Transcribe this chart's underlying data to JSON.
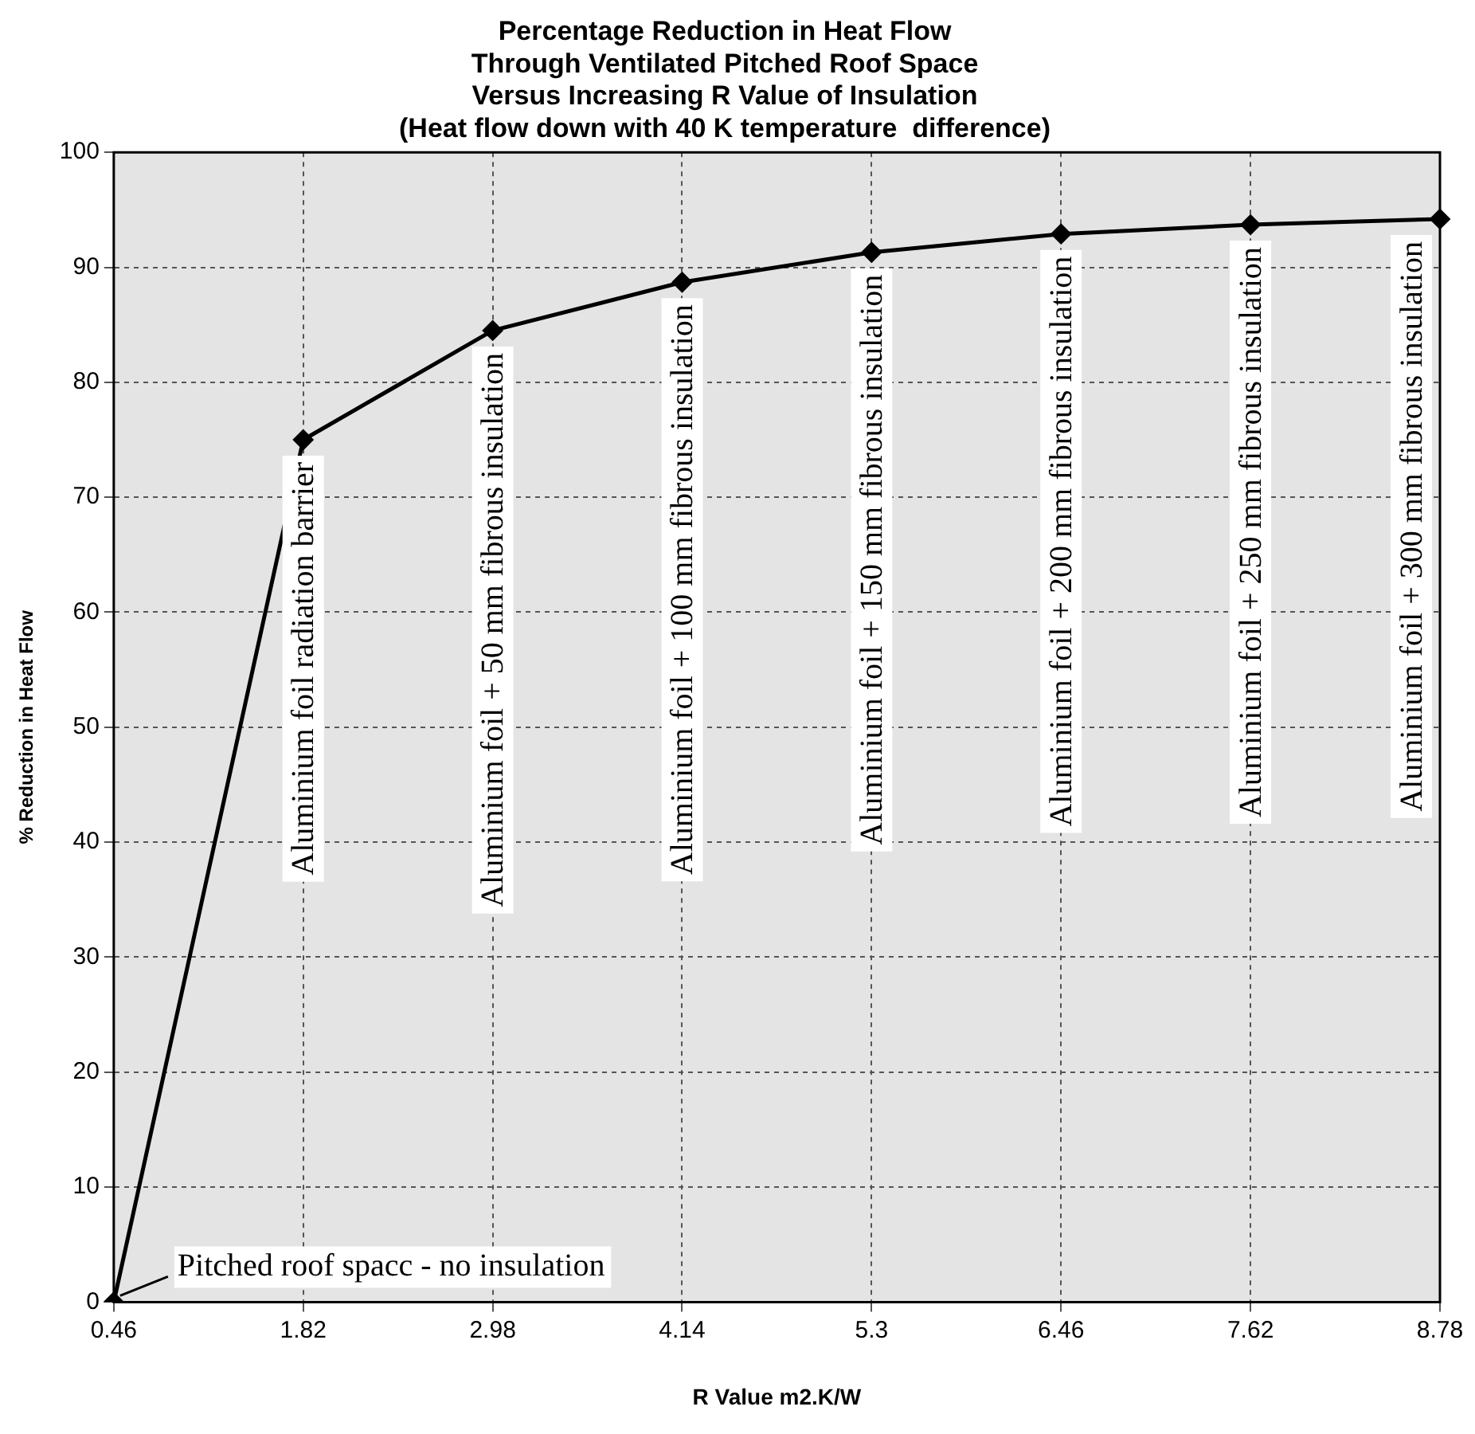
{
  "chart_data": {
    "type": "line",
    "title": "Percentage Reduction in Heat Flow\nThrough Ventilated Pitched Roof Space\nVersus Increasing R Value of Insulation\n(Heat flow down with 40 K temperature  difference)",
    "xlabel": "R Value m2.K/W",
    "ylabel": "% Reduction in Heat Flow",
    "categories": [
      "0.46",
      "1.82",
      "2.98",
      "4.14",
      "5.3",
      "6.46",
      "7.62",
      "8.78"
    ],
    "series": [
      {
        "color": "#000000",
        "values": [
          0,
          75,
          84.5,
          88.7,
          91.3,
          92.9,
          93.7,
          94.2
        ]
      }
    ],
    "ylim": [
      0,
      100
    ],
    "yticks": [
      0,
      10,
      20,
      30,
      40,
      50,
      60,
      70,
      80,
      90,
      100
    ],
    "grid": true,
    "legend": false,
    "marker": "diamond",
    "line_style": "solid",
    "annotations": [
      {
        "text": "Pitched roof spacc - no insulation",
        "x": "0.46",
        "y": 0
      },
      {
        "text": "Aluminium foil radiation barrier",
        "x": "1.82",
        "y": 75
      },
      {
        "text": "Aluminium foil + 50 mm fibrous insulation",
        "x": "2.98",
        "y": 84.5
      },
      {
        "text": "Aluminium foil + 100 mm fibrous insulation",
        "x": "4.14",
        "y": 88.7
      },
      {
        "text": "Aluminium foil + 150 mm fibrous insulation",
        "x": "5.3",
        "y": 91.3
      },
      {
        "text": "Aluminium foil + 200 mm fibrous insulation",
        "x": "6.46",
        "y": 92.9
      },
      {
        "text": "Aluminium foil + 250 mm fibrous insulation",
        "x": "7.62",
        "y": 93.7
      },
      {
        "text": "Aluminium foil + 300 mm fibrous insulation",
        "x": "8.78",
        "y": 94.2
      }
    ]
  }
}
